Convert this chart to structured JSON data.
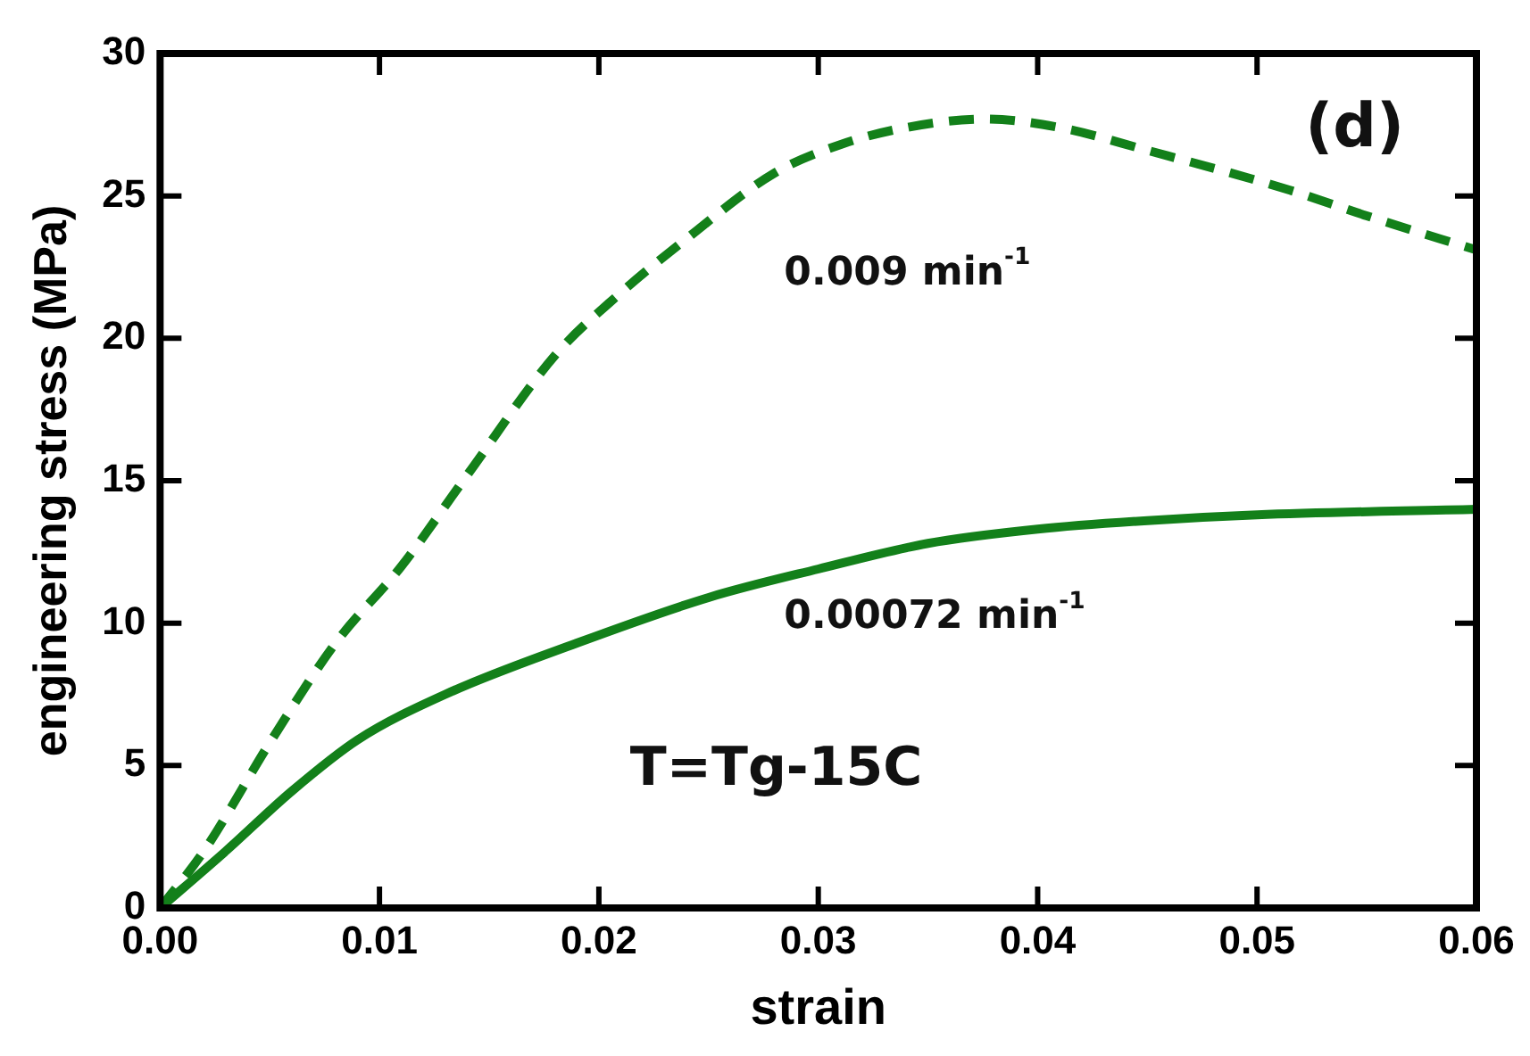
{
  "chart_data": {
    "type": "line",
    "xlabel": "strain",
    "ylabel": "engineering stress (MPa)",
    "xlim": [
      0,
      0.06
    ],
    "xticks": [
      {
        "value": 0,
        "label": "0.00"
      },
      {
        "value": 0.01,
        "label": "0.01"
      },
      {
        "value": 0.02,
        "label": "0.02"
      },
      {
        "value": 0.03,
        "label": "0.03"
      },
      {
        "value": 0.04,
        "label": "0.04"
      },
      {
        "value": 0.05,
        "label": "0.05"
      },
      {
        "value": 0.06,
        "label": "0.06"
      }
    ],
    "ylim": [
      0,
      30
    ],
    "yticks": [
      0,
      5,
      10,
      15,
      20,
      25,
      30
    ],
    "grid": false,
    "legend": false,
    "marker": "none",
    "series": [
      {
        "color": "#13801a",
        "line_style": "dashed",
        "x": [
          0,
          0.002,
          0.005,
          0.008,
          0.011,
          0.014,
          0.018,
          0.021,
          0.024,
          0.028,
          0.031,
          0.034,
          0.0376,
          0.041,
          0.045,
          0.0515,
          0.055,
          0.06
        ],
        "values": [
          0,
          2,
          5.8,
          9.3,
          12,
          15.2,
          19.4,
          21.6,
          23.5,
          25.8,
          26.8,
          27.4,
          27.7,
          27.4,
          26.6,
          25.2,
          24.3,
          23.1
        ]
      },
      {
        "color": "#13801a",
        "line_style": "solid",
        "x": [
          0,
          0.003,
          0.006,
          0.009,
          0.013,
          0.019,
          0.025,
          0.03,
          0.035,
          0.04,
          0.045,
          0.05,
          0.06
        ],
        "values": [
          0,
          2,
          4.1,
          5.9,
          7.5,
          9.3,
          10.9,
          11.9,
          12.8,
          13.3,
          13.6,
          13.8,
          14
        ]
      }
    ],
    "annotations": [
      "0.009 min$^{-1}$",
      "0.00072 min$^{-1}$",
      "T=Tg-15C",
      "(d)"
    ]
  }
}
